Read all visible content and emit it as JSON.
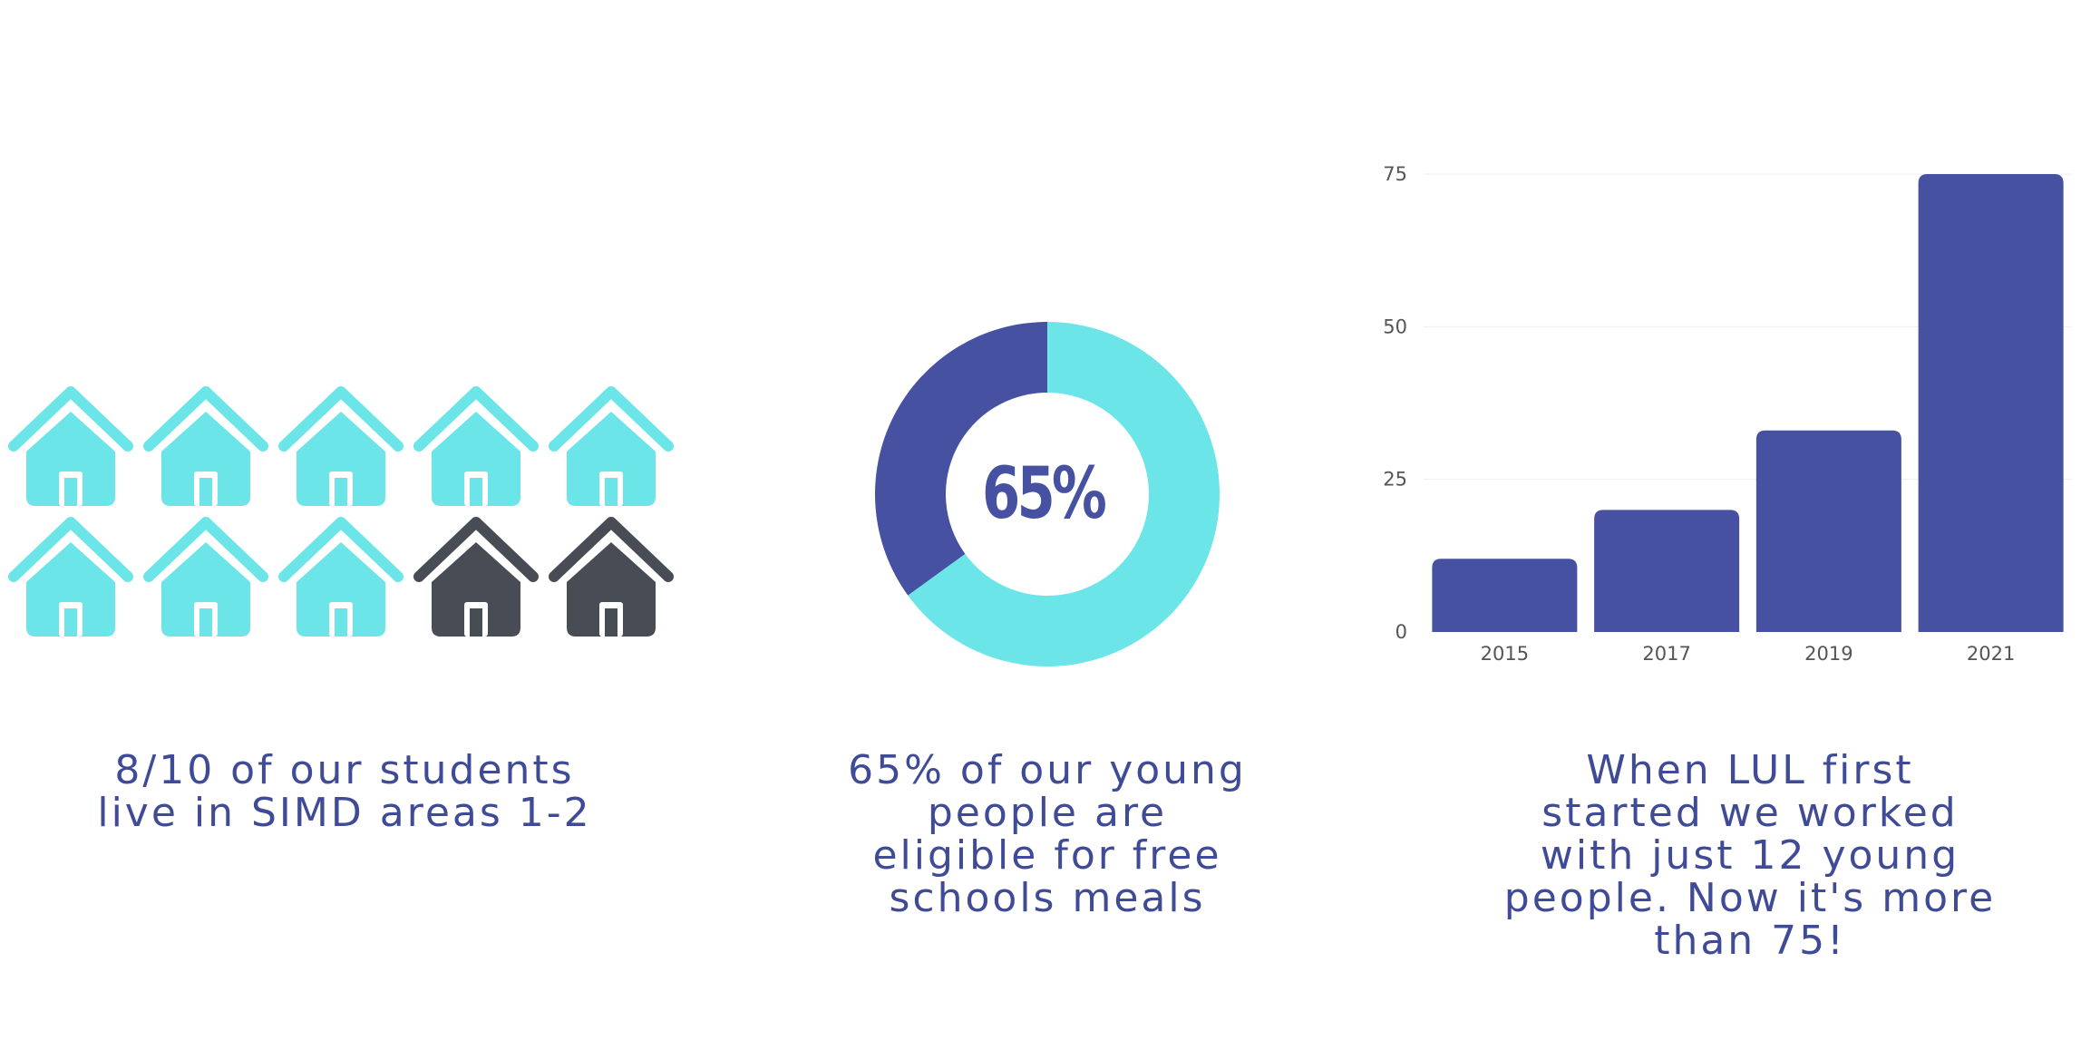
{
  "colors": {
    "teal": "#6ce5e8",
    "navy": "#4652a1",
    "dark": "#474c55",
    "grid": "#eeeeee",
    "caption": "#3f4b97"
  },
  "houses": {
    "icon": "house-icon",
    "total": 10,
    "highlighted": 8,
    "caption": "8/10 of our students\nlive in SIMD areas 1-2"
  },
  "donut": {
    "label": "65%",
    "caption": "65% of our young\npeople are\neligible for free\nschools meals"
  },
  "bars": {
    "caption": "When LUL first\nstarted we worked\nwith just 12 young\npeople. Now it's more\nthan 75!"
  },
  "chart_data": [
    {
      "type": "pie",
      "values": [
        65,
        35
      ],
      "colors": [
        "#6ce5e8",
        "#4652a1"
      ],
      "center_label": "65%"
    },
    {
      "type": "bar",
      "categories": [
        "2015",
        "2017",
        "2019",
        "2021"
      ],
      "values": [
        12,
        20,
        33,
        75
      ],
      "ylim": [
        0,
        75
      ],
      "yticks": [
        0,
        25,
        50,
        75
      ],
      "grid": true,
      "color": "#4652a1"
    }
  ]
}
